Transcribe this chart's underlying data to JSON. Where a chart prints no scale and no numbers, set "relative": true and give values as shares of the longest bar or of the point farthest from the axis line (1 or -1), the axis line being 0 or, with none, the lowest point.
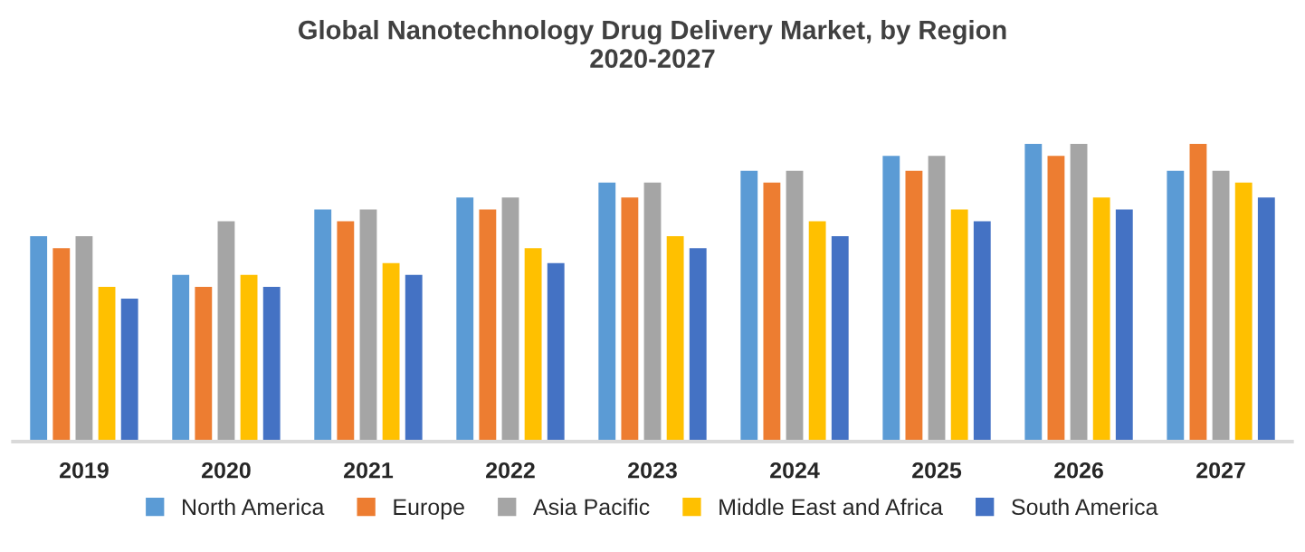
{
  "chart_data": {
    "type": "bar",
    "title": "Global Nanotechnology Drug Delivery Market, by Region\n2020-2027",
    "relative": true,
    "categories": [
      "2019",
      "2020",
      "2021",
      "2022",
      "2023",
      "2024",
      "2025",
      "2026",
      "2027"
    ],
    "series": [
      {
        "name": "North America",
        "color": "#5b9bd5",
        "values": [
          0.69,
          0.56,
          0.78,
          0.82,
          0.87,
          0.91,
          0.96,
          1,
          0.91
        ]
      },
      {
        "name": "Europe",
        "color": "#ed7d31",
        "values": [
          0.65,
          0.52,
          0.74,
          0.78,
          0.82,
          0.87,
          0.91,
          0.96,
          1
        ]
      },
      {
        "name": "Asia Pacific",
        "color": "#a5a5a5",
        "values": [
          0.69,
          0.74,
          0.78,
          0.82,
          0.87,
          0.91,
          0.96,
          1,
          0.91
        ]
      },
      {
        "name": "Middle East and Africa",
        "color": "#ffc000",
        "values": [
          0.52,
          0.56,
          0.6,
          0.65,
          0.69,
          0.74,
          0.78,
          0.82,
          0.87
        ]
      },
      {
        "name": "South America",
        "color": "#4472c4",
        "values": [
          0.48,
          0.52,
          0.56,
          0.6,
          0.65,
          0.69,
          0.74,
          0.78,
          0.82
        ]
      }
    ],
    "legend": "bottom",
    "grid": false
  }
}
